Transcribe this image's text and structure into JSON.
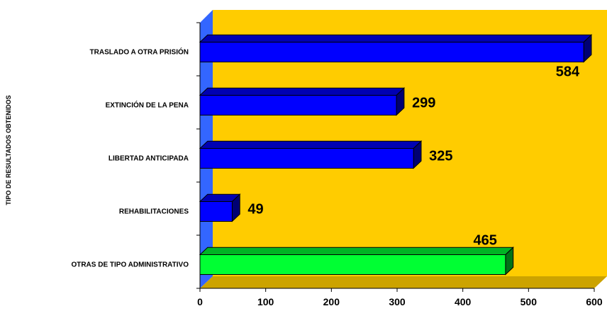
{
  "chart_data": {
    "type": "bar",
    "orientation": "horizontal",
    "title": "",
    "xlabel": "",
    "ylabel": "TIPO DE RESULTADOS OBTENIDOS",
    "categories": [
      "TRASLADO A OTRA PRISIÓN",
      "EXTINCIÓN DE LA PENA",
      "LIBERTAD ANTICIPADA",
      "REHABILITACIONES",
      "OTRAS DE TIPO ADMINISTRATIVO"
    ],
    "values": [
      584,
      299,
      325,
      49,
      465
    ],
    "data_labels": [
      "584",
      "299",
      "325",
      "49",
      "465"
    ],
    "bar_colors": [
      "#0000ff",
      "#0000ff",
      "#0000ff",
      "#0000ff",
      "#00ff33"
    ],
    "xlim": [
      0,
      600
    ],
    "xticks": [
      "0",
      "100",
      "200",
      "300",
      "400",
      "500",
      "600"
    ],
    "plot_background": "#ffcc00",
    "wall_color": "#3366ff",
    "grid": false,
    "legend": "none",
    "style": "3d"
  }
}
